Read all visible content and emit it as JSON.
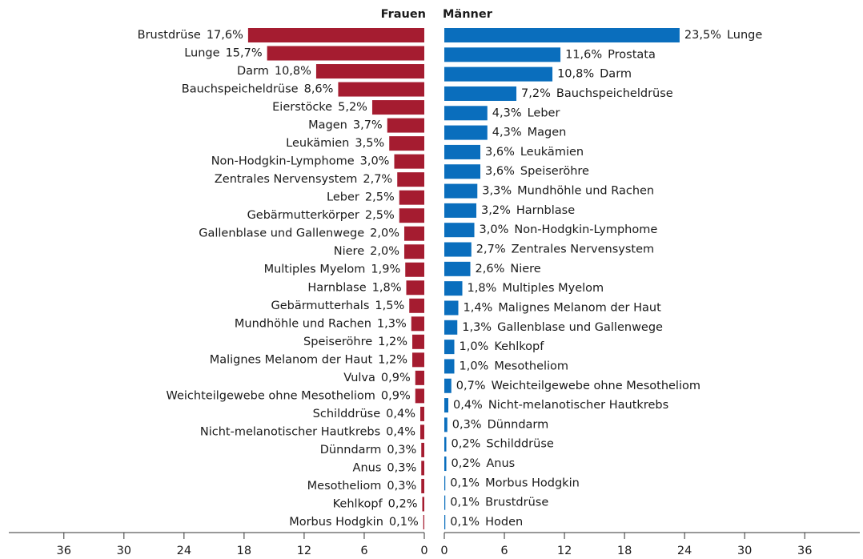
{
  "chart_data": [
    {
      "type": "bar",
      "orientation": "horizontal",
      "xreverse": true,
      "title": "Frauen",
      "color": "#a51c30",
      "categories": [
        "Brustdrüse",
        "Lunge",
        "Darm",
        "Bauchspeicheldrüse",
        "Eierstöcke",
        "Magen",
        "Leukämien",
        "Non-Hodgkin-Lymphome",
        "Zentrales Nervensystem",
        "Leber",
        "Gebärmutterkörper",
        "Gallenblase und Gallenwege",
        "Niere",
        "Multiples Myelom",
        "Harnblase",
        "Gebärmutterhals",
        "Mundhöhle und Rachen",
        "Speiseröhre",
        "Malignes Melanom der Haut",
        "Vulva",
        "Weichteilgewebe ohne Mesotheliom",
        "Schilddrüse",
        "Nicht-melanotischer Hautkrebs",
        "Dünndarm",
        "Anus",
        "Mesotheliom",
        "Kehlkopf",
        "Morbus Hodgkin"
      ],
      "values": [
        17.6,
        15.7,
        10.8,
        8.6,
        5.2,
        3.7,
        3.5,
        3.0,
        2.7,
        2.5,
        2.5,
        2.0,
        2.0,
        1.9,
        1.8,
        1.5,
        1.3,
        1.2,
        1.2,
        0.9,
        0.9,
        0.4,
        0.4,
        0.3,
        0.3,
        0.3,
        0.2,
        0.1
      ],
      "value_labels": [
        "17,6%",
        "15,7%",
        "10,8%",
        "8,6%",
        "5,2%",
        "3,7%",
        "3,5%",
        "3,0%",
        "2,7%",
        "2,5%",
        "2,5%",
        "2,0%",
        "2,0%",
        "1,9%",
        "1,8%",
        "1,5%",
        "1,3%",
        "1,2%",
        "1,2%",
        "0,9%",
        "0,9%",
        "0,4%",
        "0,4%",
        "0,3%",
        "0,3%",
        "0,3%",
        "0,2%",
        "0,1%"
      ],
      "xlim": [
        0,
        41.5
      ],
      "xticks": [
        0,
        6,
        12,
        18,
        24,
        30,
        36
      ]
    },
    {
      "type": "bar",
      "orientation": "horizontal",
      "xreverse": false,
      "title": "Männer",
      "color": "#0a6ebd",
      "categories": [
        "Lunge",
        "Prostata",
        "Darm",
        "Bauchspeicheldrüse",
        "Leber",
        "Magen",
        "Leukämien",
        "Speiseröhre",
        "Mundhöhle und Rachen",
        "Harnblase",
        "Non-Hodgkin-Lymphome",
        "Zentrales Nervensystem",
        "Niere",
        "Multiples Myelom",
        "Malignes Melanom der Haut",
        "Gallenblase und Gallenwege",
        "Kehlkopf",
        "Mesotheliom",
        "Weichteilgewebe ohne Mesotheliom",
        "Nicht-melanotischer Hautkrebs",
        "Dünndarm",
        "Schilddrüse",
        "Anus",
        "Morbus Hodgkin",
        "Brustdrüse",
        "Hoden"
      ],
      "values": [
        23.5,
        11.6,
        10.8,
        7.2,
        4.3,
        4.3,
        3.6,
        3.6,
        3.3,
        3.2,
        3.0,
        2.7,
        2.6,
        1.8,
        1.4,
        1.3,
        1.0,
        1.0,
        0.7,
        0.4,
        0.3,
        0.2,
        0.2,
        0.1,
        0.1,
        0.1
      ],
      "value_labels": [
        "23,5%",
        "11,6%",
        "10,8%",
        "7,2%",
        "4,3%",
        "4,3%",
        "3,6%",
        "3,6%",
        "3,3%",
        "3,2%",
        "3,0%",
        "2,7%",
        "2,6%",
        "1,8%",
        "1,4%",
        "1,3%",
        "1,0%",
        "1,0%",
        "0,7%",
        "0,4%",
        "0,3%",
        "0,2%",
        "0,2%",
        "0,1%",
        "0,1%",
        "0,1%"
      ],
      "xlim": [
        0,
        41.5
      ],
      "xticks": [
        0,
        6,
        12,
        18,
        24,
        30,
        36
      ]
    }
  ]
}
